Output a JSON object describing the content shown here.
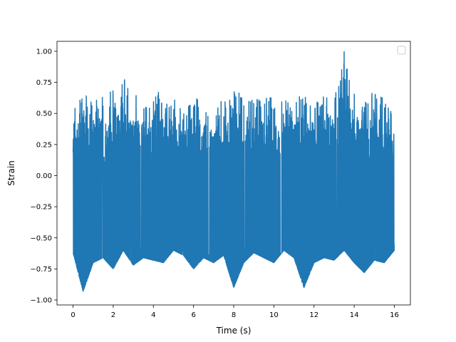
{
  "chart_data": {
    "type": "line",
    "title": "",
    "xlabel": "Time (s)",
    "ylabel": "Strain",
    "xlim": [
      -0.8,
      16.8
    ],
    "ylim": [
      -1.04,
      1.08
    ],
    "xticks": [
      0,
      2,
      4,
      6,
      8,
      10,
      12,
      14,
      16
    ],
    "xtick_labels": [
      "0",
      "2",
      "4",
      "6",
      "8",
      "10",
      "12",
      "14",
      "16"
    ],
    "yticks": [
      -1.0,
      -0.75,
      -0.5,
      -0.25,
      0.0,
      0.25,
      0.5,
      0.75,
      1.0
    ],
    "ytick_labels": [
      "−1.00",
      "−0.75",
      "−0.50",
      "−0.25",
      "0.00",
      "0.25",
      "0.50",
      "0.75",
      "1.00"
    ],
    "grid": false,
    "legend": {
      "placement": "top-right",
      "entries": []
    },
    "series": [
      {
        "color": "#1f77b4",
        "x_range": [
          0,
          16
        ],
        "envelope_x": [
          0,
          0.5,
          1,
          1.5,
          2,
          2.5,
          3,
          3.5,
          4,
          4.5,
          5,
          5.5,
          6,
          6.5,
          7,
          7.5,
          8,
          8.5,
          9,
          9.5,
          10,
          10.5,
          11,
          11.5,
          12,
          12.5,
          13,
          13.5,
          14,
          14.5,
          15,
          15.5,
          16
        ],
        "envelope_max": [
          0.55,
          0.66,
          0.6,
          0.64,
          0.7,
          0.79,
          0.66,
          0.62,
          0.68,
          0.66,
          0.62,
          0.55,
          0.64,
          0.6,
          0.58,
          0.62,
          0.75,
          0.66,
          0.6,
          0.64,
          0.62,
          0.6,
          0.65,
          0.64,
          0.6,
          0.66,
          0.62,
          1.0,
          0.66,
          0.62,
          0.7,
          0.64,
          0.52
        ],
        "envelope_min": [
          -0.62,
          -0.93,
          -0.7,
          -0.66,
          -0.75,
          -0.6,
          -0.72,
          -0.66,
          -0.68,
          -0.7,
          -0.6,
          -0.64,
          -0.75,
          -0.66,
          -0.7,
          -0.64,
          -0.9,
          -0.7,
          -0.62,
          -0.66,
          -0.7,
          -0.6,
          -0.66,
          -0.9,
          -0.7,
          -0.66,
          -0.68,
          -0.6,
          -0.7,
          -0.78,
          -0.68,
          -0.7,
          -0.6
        ]
      }
    ]
  }
}
